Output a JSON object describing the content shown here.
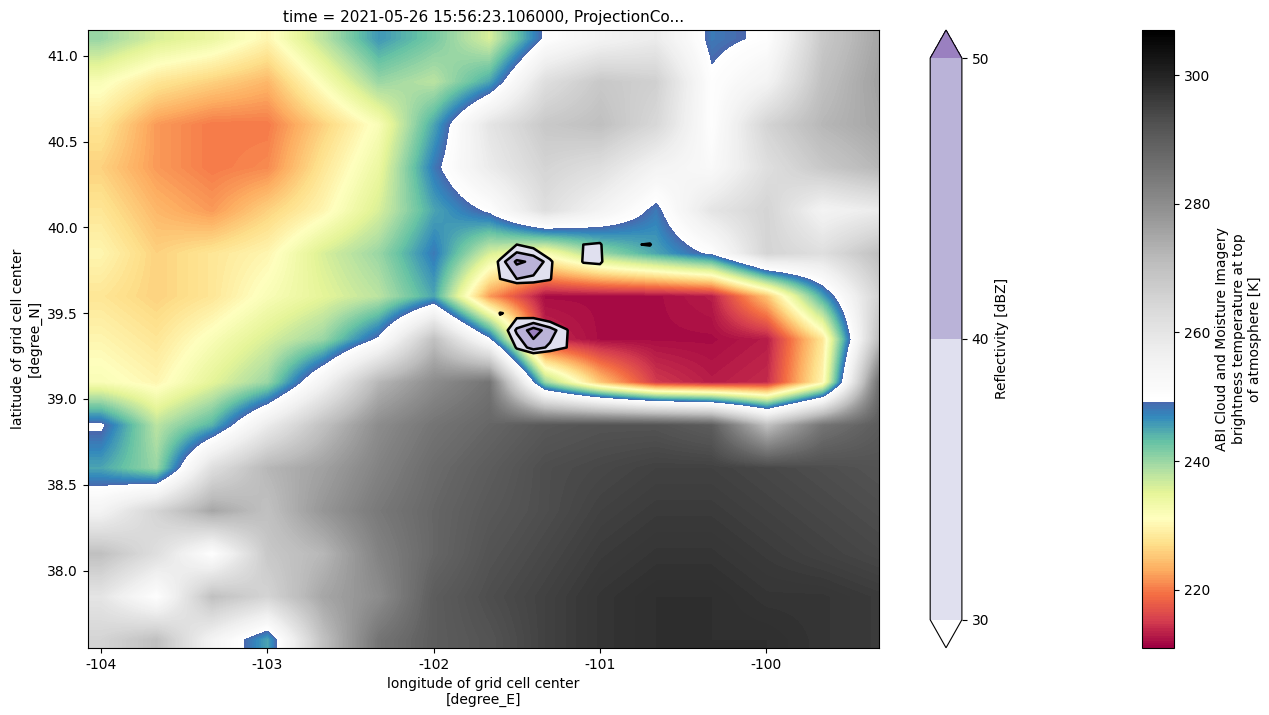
{
  "chart_data": {
    "type": "heatmap",
    "title": "time = 2021-05-26 15:56:23.106000, ProjectionCo...",
    "xlabel": "longitude of grid cell center\n[degree_E]",
    "ylabel": "latitude of grid cell center\n[degree_N]",
    "xlim": [
      -104.08,
      -99.32
    ],
    "ylim": [
      37.55,
      41.15
    ],
    "xticks": [
      -104,
      -103,
      -102,
      -101,
      -100
    ],
    "yticks": [
      {
        "value": 38,
        "label": "38.0"
      },
      38.5,
      {
        "value": 39,
        "label": "39.0"
      },
      39.5,
      {
        "value": 40,
        "label": "40.0"
      },
      40.5,
      {
        "value": 41,
        "label": "41.0"
      }
    ],
    "x": [
      -104.0,
      -103.67,
      -103.33,
      -103.0,
      -102.67,
      -102.33,
      -102.0,
      -101.67,
      -101.33,
      -101.0,
      -100.67,
      -100.33,
      -100.0,
      -99.67,
      -99.33
    ],
    "y": [
      37.6,
      37.85,
      38.1,
      38.35,
      38.6,
      38.85,
      39.1,
      39.35,
      39.6,
      39.85,
      40.1,
      40.35,
      40.6,
      40.85,
      41.1
    ],
    "cells": [
      [
        265,
        270,
        255,
        245,
        270,
        285,
        290,
        292,
        295,
        297,
        298,
        298,
        298,
        297,
        296
      ],
      [
        260,
        250,
        270,
        265,
        275,
        280,
        290,
        293,
        295,
        297,
        298,
        298,
        297,
        297,
        296
      ],
      [
        270,
        262,
        250,
        268,
        272,
        282,
        288,
        292,
        294,
        296,
        297,
        297,
        296,
        295,
        294
      ],
      [
        255,
        265,
        275,
        270,
        278,
        284,
        288,
        291,
        293,
        295,
        296,
        296,
        295,
        294,
        293
      ],
      [
        245,
        240,
        262,
        272,
        276,
        282,
        287,
        290,
        293,
        294,
        295,
        295,
        294,
        293,
        292
      ],
      [
        250,
        238,
        244,
        258,
        270,
        280,
        285,
        288,
        291,
        292,
        292,
        290,
        270,
        285,
        290
      ],
      [
        232,
        230,
        235,
        240,
        255,
        272,
        280,
        285,
        240,
        225,
        215,
        213,
        214,
        230,
        285
      ],
      [
        230,
        228,
        232,
        236,
        240,
        250,
        270,
        250,
        214,
        212,
        212,
        212,
        213,
        228,
        270
      ],
      [
        228,
        226,
        228,
        232,
        235,
        238,
        245,
        222,
        212,
        212,
        212,
        213,
        225,
        245,
        265
      ],
      [
        230,
        226,
        228,
        230,
        236,
        240,
        248,
        236,
        232,
        240,
        245,
        250,
        265,
        262,
        270
      ],
      [
        228,
        224,
        222,
        226,
        230,
        236,
        245,
        250,
        262,
        255,
        248,
        260,
        265,
        255,
        258
      ],
      [
        226,
        222,
        220,
        221,
        228,
        234,
        248,
        258,
        265,
        262,
        255,
        252,
        262,
        268,
        272
      ],
      [
        228,
        222,
        220,
        220,
        226,
        232,
        245,
        260,
        268,
        270,
        264,
        250,
        265,
        272,
        275
      ],
      [
        232,
        228,
        226,
        224,
        232,
        240,
        238,
        245,
        262,
        268,
        266,
        250,
        255,
        270,
        276
      ],
      [
        240,
        236,
        234,
        230,
        238,
        246,
        242,
        236,
        250,
        255,
        258,
        248,
        250,
        268,
        275
      ]
    ],
    "colorbar": {
      "label": "ABI Cloud and Moisture Imagery\nbrightness temperature at top\nof atmosphere [K]",
      "range": [
        211,
        307
      ],
      "ticks": [
        220,
        240,
        260,
        280,
        300
      ]
    },
    "contours": {
      "label": "Reflectivity [dBZ]",
      "x": [
        -101.8,
        -101.7,
        -101.6,
        -101.5,
        -101.4,
        -101.3,
        -101.2,
        -101.1,
        -101.0,
        -100.9,
        -100.8,
        -100.7,
        -100.6
      ],
      "y": [
        39.2,
        39.3,
        39.4,
        39.5,
        39.6,
        39.7,
        39.8,
        39.9,
        40.0
      ],
      "cells": [
        [
          0,
          0,
          0,
          0,
          0,
          0,
          0,
          0,
          0,
          0,
          0,
          0,
          0
        ],
        [
          0,
          0,
          0,
          32,
          45,
          38,
          30,
          25,
          0,
          0,
          0,
          0,
          0
        ],
        [
          0,
          0,
          20,
          42,
          55,
          45,
          32,
          0,
          0,
          0,
          0,
          0,
          0
        ],
        [
          0,
          0,
          31,
          25,
          20,
          15,
          0,
          0,
          0,
          0,
          0,
          0,
          0
        ],
        [
          0,
          0,
          0,
          0,
          0,
          0,
          0,
          0,
          0,
          0,
          0,
          0,
          0
        ],
        [
          0,
          0,
          30,
          40,
          38,
          32,
          0,
          0,
          0,
          0,
          0,
          0,
          0
        ],
        [
          0,
          0,
          35,
          52,
          48,
          35,
          0,
          32,
          35,
          0,
          0,
          0,
          0
        ],
        [
          0,
          0,
          0,
          30,
          25,
          0,
          0,
          30,
          33,
          0,
          28,
          32,
          0
        ],
        [
          0,
          0,
          0,
          0,
          0,
          0,
          0,
          0,
          0,
          0,
          0,
          0,
          0
        ]
      ],
      "levels": [
        30,
        40,
        50
      ],
      "ticks": [
        30,
        40,
        50
      ]
    }
  }
}
